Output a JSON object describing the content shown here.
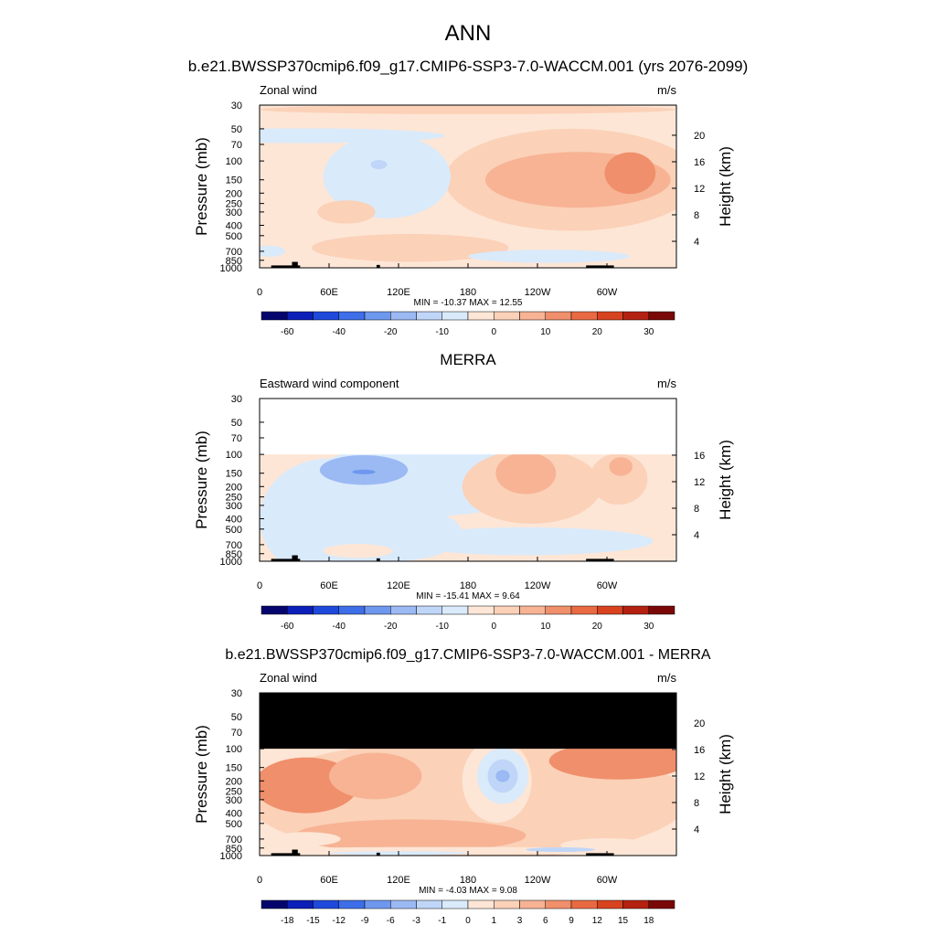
{
  "figure": {
    "title": "ANN",
    "colors": {
      "black": "#000000",
      "missing": "#ffffff"
    }
  },
  "chart_data": [
    {
      "type": "heatmap",
      "title": "b.e21.BWSSP370cmip6.f09_g17.CMIP6-SSP3-7.0-WACCM.001 (yrs 2076-2099)",
      "left_label": "Zonal wind",
      "units": "m/s",
      "ylabel": "Pressure (mb)",
      "y2label": "Height (km)",
      "y_ticks": [
        "30",
        "50",
        "70",
        "100",
        "150",
        "200",
        "250",
        "300",
        "400",
        "500",
        "700",
        "850",
        "1000"
      ],
      "y2_ticks": [
        "20",
        "16",
        "12",
        "8",
        "4"
      ],
      "x_ticks": [
        "0",
        "60E",
        "120E",
        "180",
        "120W",
        "60W"
      ],
      "minmax": "MIN = -10.37  MAX =  12.55",
      "colorbar_labels": [
        "-60",
        "-40",
        "-20",
        "-10",
        "0",
        "10",
        "20",
        "30"
      ],
      "valid_top_mb": 30
    },
    {
      "type": "heatmap",
      "title": "MERRA",
      "left_label": "Eastward wind component",
      "units": "m/s",
      "ylabel": "Pressure (mb)",
      "y2label": "Height (km)",
      "y_ticks": [
        "30",
        "50",
        "70",
        "100",
        "150",
        "200",
        "250",
        "300",
        "400",
        "500",
        "700",
        "850",
        "1000"
      ],
      "y2_ticks": [
        "16",
        "12",
        "8",
        "4"
      ],
      "x_ticks": [
        "0",
        "60E",
        "120E",
        "180",
        "120W",
        "60W"
      ],
      "minmax": "MIN = -15.41  MAX =   9.64",
      "colorbar_labels": [
        "-60",
        "-40",
        "-20",
        "-10",
        "0",
        "10",
        "20",
        "30"
      ],
      "valid_top_mb": 100
    },
    {
      "type": "heatmap",
      "title": "b.e21.BWSSP370cmip6.f09_g17.CMIP6-SSP3-7.0-WACCM.001 - MERRA",
      "left_label": "Zonal wind",
      "units": "m/s",
      "ylabel": "Pressure (mb)",
      "y2label": "Height (km)",
      "y_ticks": [
        "30",
        "50",
        "70",
        "100",
        "150",
        "200",
        "250",
        "300",
        "400",
        "500",
        "700",
        "850",
        "1000"
      ],
      "y2_ticks": [
        "20",
        "16",
        "12",
        "8",
        "4"
      ],
      "x_ticks": [
        "0",
        "60E",
        "120E",
        "180",
        "120W",
        "60W"
      ],
      "minmax": "MIN =  -4.03  MAX =   9.08",
      "colorbar_labels": [
        "-18",
        "-15",
        "-12",
        "-9",
        "-6",
        "-3",
        "-1",
        "0",
        "1",
        "3",
        "6",
        "9",
        "12",
        "15",
        "18"
      ],
      "valid_top_mb": 100
    }
  ],
  "colorbar_colors": [
    "#05056d",
    "#0c1fb8",
    "#1f49db",
    "#3e6ee8",
    "#6e97ee",
    "#9bb9f3",
    "#c0d6f8",
    "#d9eafb",
    "#fde6d6",
    "#fbd1b8",
    "#f7b394",
    "#f08f6b",
    "#e96a42",
    "#d8431f",
    "#b42110",
    "#7a0806"
  ],
  "topography": [
    {
      "lon": [
        10,
        35
      ],
      "top_mb": 950
    },
    {
      "lon": [
        28,
        33
      ],
      "top_mb": 880
    },
    {
      "lon": [
        101,
        104
      ],
      "top_mb": 940
    },
    {
      "lon": [
        282,
        306
      ],
      "top_mb": 950
    }
  ],
  "contour_blobs": [
    [
      {
        "lon": 135,
        "p": 450,
        "rx": 150,
        "ry": 3.5,
        "color": "#fde6d6"
      },
      {
        "lon": 270,
        "p": 150,
        "rx": 110,
        "ry": 1.1,
        "color": "#fbd1b8"
      },
      {
        "lon": 275,
        "p": 150,
        "rx": 80,
        "ry": 0.6,
        "color": "#f7b394"
      },
      {
        "lon": 320,
        "p": 130,
        "rx": 22,
        "ry": 0.45,
        "color": "#f08f6b"
      },
      {
        "lon": 110,
        "p": 140,
        "rx": 55,
        "ry": 0.9,
        "color": "#d9eafb"
      },
      {
        "lon": 103,
        "p": 108,
        "rx": 7,
        "ry": 0.1,
        "color": "#c0d6f8"
      },
      {
        "lon": 40,
        "p": 58,
        "rx": 120,
        "ry": 0.16,
        "color": "#d9eafb"
      },
      {
        "lon": 75,
        "p": 300,
        "rx": 25,
        "ry": 0.25,
        "color": "#fbd1b8"
      },
      {
        "lon": 130,
        "p": 650,
        "rx": 85,
        "ry": 0.3,
        "color": "#fbd1b8"
      },
      {
        "lon": 250,
        "p": 780,
        "rx": 70,
        "ry": 0.14,
        "color": "#d9eafb"
      },
      {
        "lon": 8,
        "p": 700,
        "rx": 14,
        "ry": 0.12,
        "color": "#d9eafb"
      },
      {
        "lon": 180,
        "p": 33,
        "rx": 180,
        "ry": 0.1,
        "color": "#fbd1b8"
      }
    ],
    [
      {
        "lon": 130,
        "p": 400,
        "rx": 120,
        "ry": 1.6,
        "color": "#fde6d6"
      },
      {
        "lon": 60,
        "p": 400,
        "rx": 60,
        "ry": 1.3,
        "color": "#d9eafb"
      },
      {
        "lon": 115,
        "p": 550,
        "rx": 60,
        "ry": 0.6,
        "color": "#d9eafb"
      },
      {
        "lon": 145,
        "p": 170,
        "rx": 100,
        "ry": 0.8,
        "color": "#d9eafb"
      },
      {
        "lon": 90,
        "p": 140,
        "rx": 38,
        "ry": 0.32,
        "color": "#9bb9f3"
      },
      {
        "lon": 90,
        "p": 146,
        "rx": 10,
        "ry": 0.05,
        "color": "#6e97ee"
      },
      {
        "lon": 235,
        "p": 200,
        "rx": 60,
        "ry": 0.8,
        "color": "#fbd1b8"
      },
      {
        "lon": 230,
        "p": 150,
        "rx": 26,
        "ry": 0.45,
        "color": "#f7b394"
      },
      {
        "lon": 310,
        "p": 170,
        "rx": 25,
        "ry": 0.55,
        "color": "#fbd1b8"
      },
      {
        "lon": 312,
        "p": 130,
        "rx": 10,
        "ry": 0.2,
        "color": "#f7b394"
      },
      {
        "lon": 230,
        "p": 650,
        "rx": 110,
        "ry": 0.3,
        "color": "#d9eafb"
      },
      {
        "lon": 85,
        "p": 800,
        "rx": 30,
        "ry": 0.15,
        "color": "#fde6d6"
      }
    ],
    [
      {
        "lon": 180,
        "p": 300,
        "rx": 190,
        "ry": 1.3,
        "color": "#fbd1b8"
      },
      {
        "lon": 40,
        "p": 220,
        "rx": 45,
        "ry": 0.6,
        "color": "#f08f6b"
      },
      {
        "lon": 100,
        "p": 180,
        "rx": 40,
        "ry": 0.5,
        "color": "#f7b394"
      },
      {
        "lon": 310,
        "p": 130,
        "rx": 60,
        "ry": 0.4,
        "color": "#f08f6b"
      },
      {
        "lon": 205,
        "p": 200,
        "rx": 30,
        "ry": 0.9,
        "color": "#fde6d6"
      },
      {
        "lon": 210,
        "p": 180,
        "rx": 22,
        "ry": 0.6,
        "color": "#d9eafb"
      },
      {
        "lon": 210,
        "p": 180,
        "rx": 13,
        "ry": 0.36,
        "color": "#c0d6f8"
      },
      {
        "lon": 210,
        "p": 180,
        "rx": 6,
        "ry": 0.13,
        "color": "#9bb9f3"
      },
      {
        "lon": 130,
        "p": 650,
        "rx": 100,
        "ry": 0.35,
        "color": "#f7b394"
      },
      {
        "lon": 40,
        "p": 700,
        "rx": 30,
        "ry": 0.15,
        "color": "#fde6d6"
      },
      {
        "lon": 300,
        "p": 800,
        "rx": 40,
        "ry": 0.15,
        "color": "#fde6d6"
      },
      {
        "lon": 160,
        "p": 900,
        "rx": 190,
        "ry": 0.08,
        "color": "#fde6d6"
      },
      {
        "lon": 120,
        "p": 950,
        "rx": 60,
        "ry": 0.04,
        "color": "#d9eafb"
      },
      {
        "lon": 260,
        "p": 880,
        "rx": 30,
        "ry": 0.05,
        "color": "#c0d6f8"
      }
    ]
  ]
}
